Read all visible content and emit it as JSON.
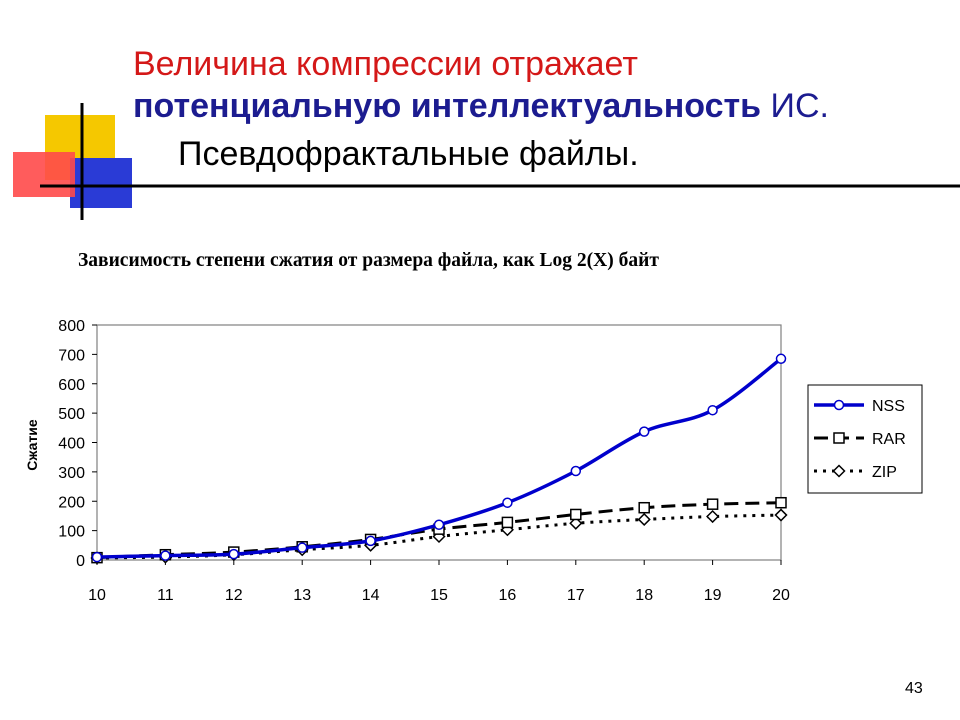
{
  "slide": {
    "title_line1": "Величина компрессии отражает",
    "title_line2_bold": "потенциальную интеллектуальность",
    "title_line2_rest": " ИС.",
    "title_line3": "Псевдофрактальные файлы.",
    "page_number": "43"
  },
  "colors": {
    "title_red": "#d41818",
    "title_blue": "#1c1c90",
    "nss": "#0000cc",
    "rar": "#000000",
    "zip": "#000000"
  },
  "chart_data": {
    "type": "line",
    "title": "Зависимость степени сжатия от размера файла, как  Log 2(X) байт",
    "xlabel": "",
    "ylabel": "Сжатие",
    "x": [
      10,
      11,
      12,
      13,
      14,
      15,
      16,
      17,
      18,
      19,
      20
    ],
    "xlim": [
      10,
      20
    ],
    "ylim": [
      0,
      800
    ],
    "yticks": [
      0,
      100,
      200,
      300,
      400,
      500,
      600,
      700,
      800
    ],
    "grid": false,
    "legend": "right",
    "series": [
      {
        "name": "NSS",
        "values": [
          10,
          15,
          20,
          42,
          65,
          120,
          195,
          303,
          437,
          510,
          685
        ],
        "style": "solid",
        "marker": "circle",
        "color": "#0000cc"
      },
      {
        "name": "RAR",
        "values": [
          8,
          18,
          27,
          45,
          70,
          105,
          128,
          155,
          178,
          190,
          195
        ],
        "style": "dashed",
        "marker": "square",
        "color": "#000000"
      },
      {
        "name": "ZIP",
        "values": [
          7,
          10,
          18,
          35,
          50,
          80,
          103,
          125,
          138,
          148,
          153
        ],
        "style": "dotted",
        "marker": "diamond",
        "color": "#000000"
      }
    ]
  }
}
